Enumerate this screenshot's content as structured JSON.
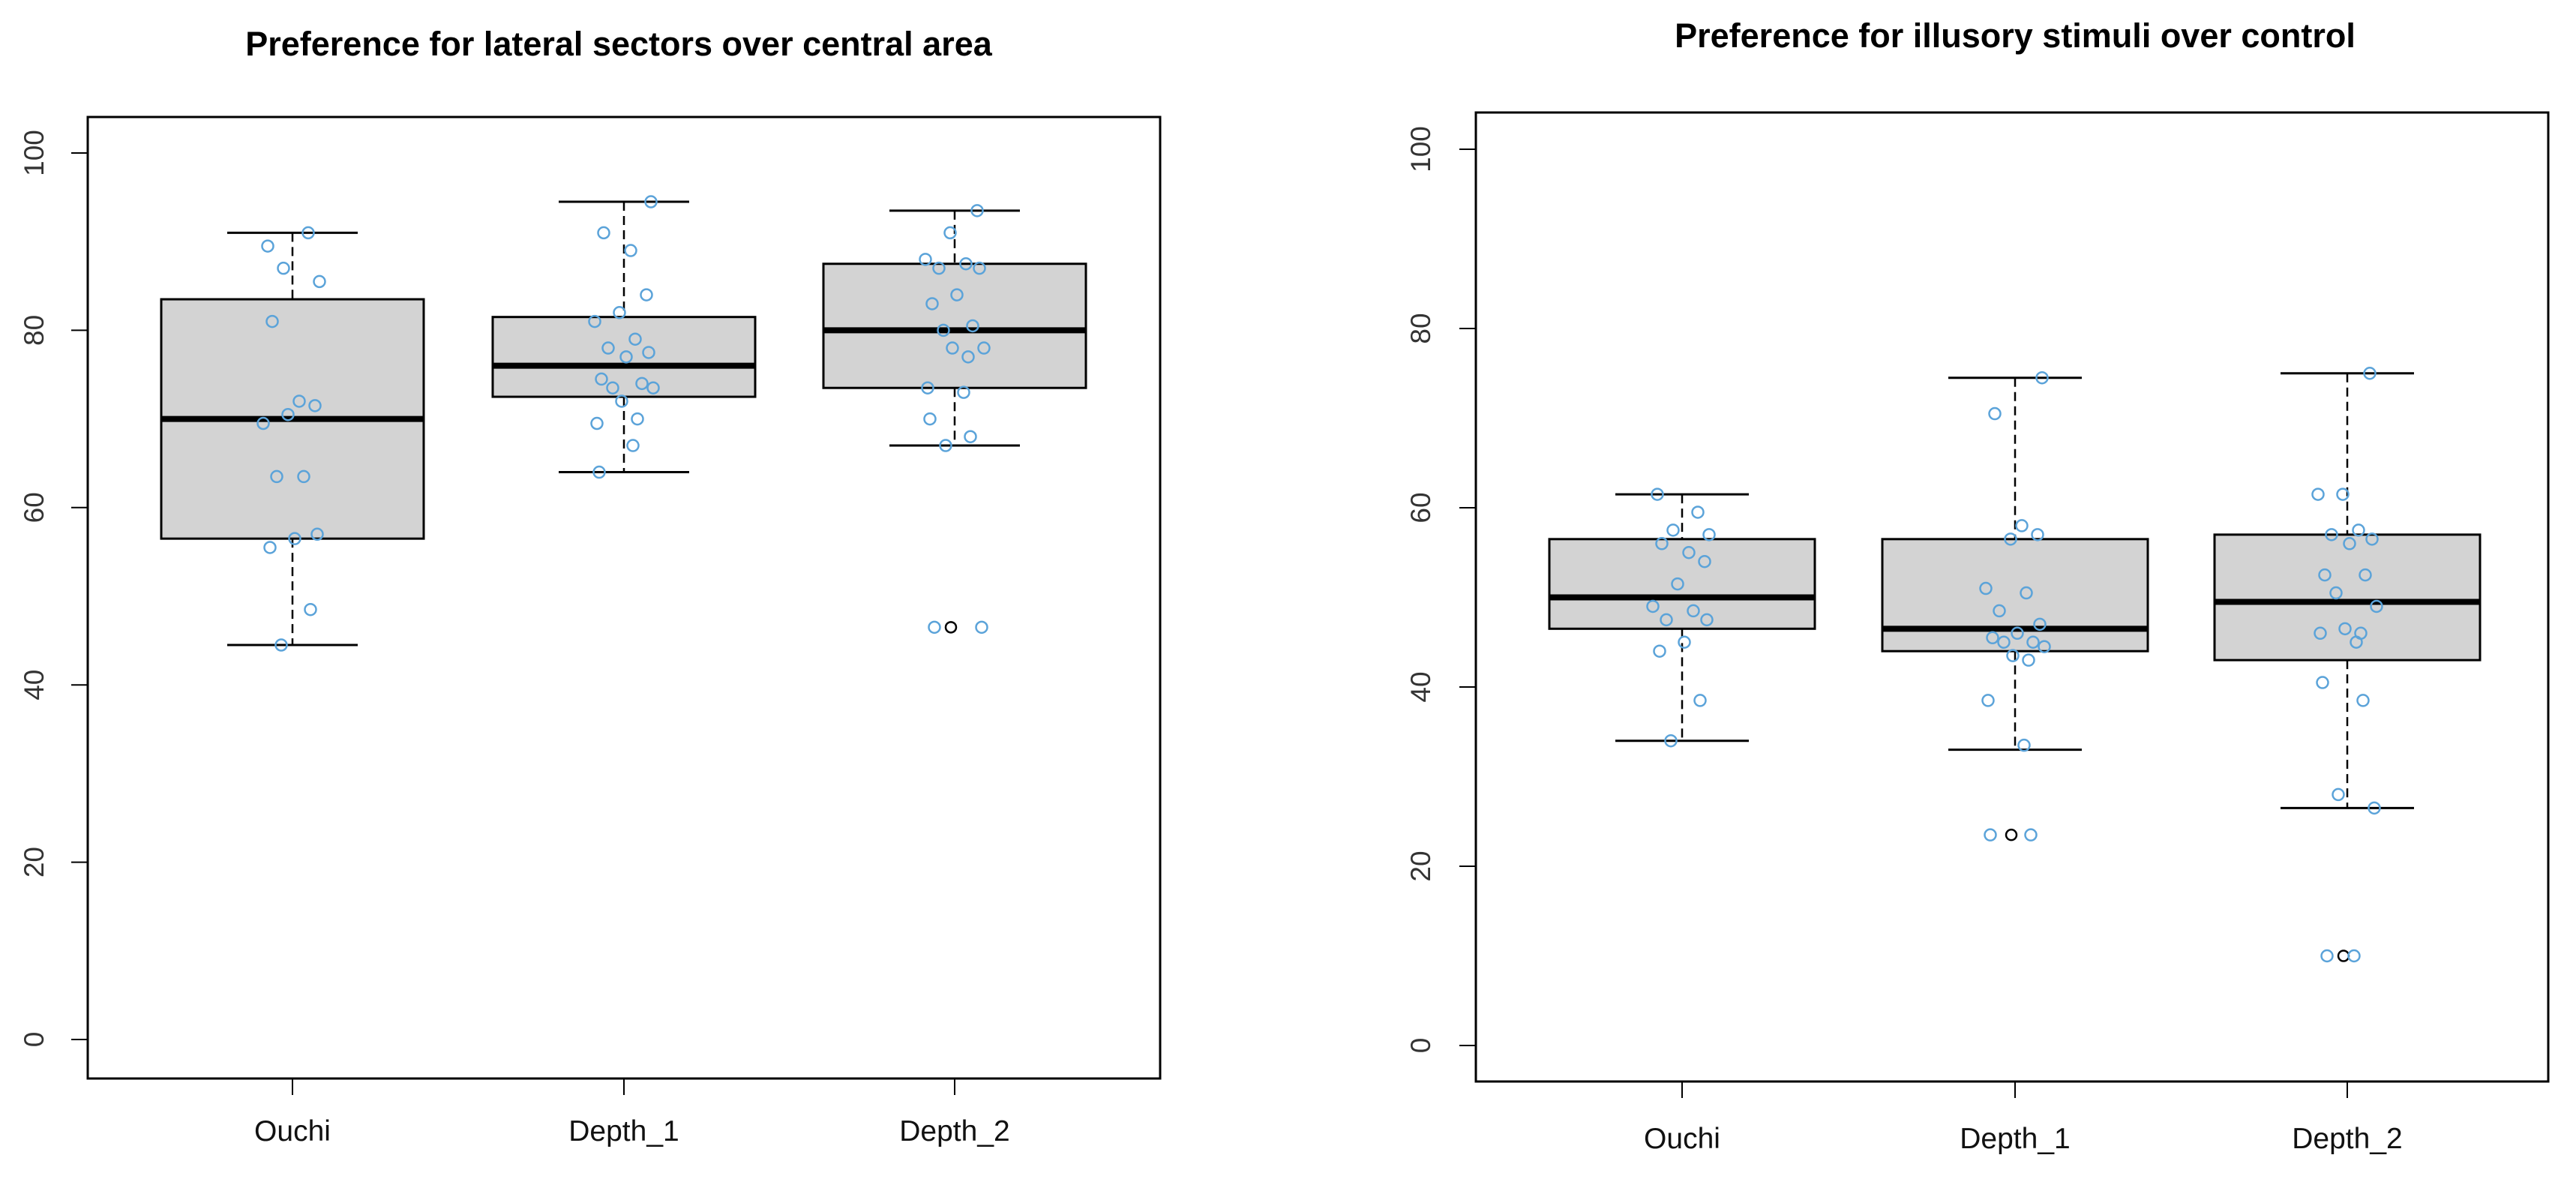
{
  "chart_data": [
    {
      "type": "boxplot",
      "title": "Preference for lateral sectors over central area",
      "xlabel": "",
      "ylabel": "",
      "ylim": [
        0,
        100
      ],
      "yticks": [
        "0",
        "20",
        "40",
        "60",
        "80",
        "100"
      ],
      "categories": [
        "Ouchi",
        "Depth_1",
        "Depth_2"
      ],
      "box_color": "#d3d3d3",
      "point_color": "#5ba3d9",
      "boxes": [
        {
          "name": "Ouchi",
          "min": 44.5,
          "q1": 56.5,
          "median": 70,
          "q3": 83.5,
          "max": 91,
          "outliers": []
        },
        {
          "name": "Depth_1",
          "min": 64,
          "q1": 72.5,
          "median": 76,
          "q3": 81.5,
          "max": 94.5,
          "outliers": []
        },
        {
          "name": "Depth_2",
          "min": 67,
          "q1": 73.5,
          "median": 80,
          "q3": 87.5,
          "max": 93.5,
          "outliers": [
            46.5
          ]
        }
      ],
      "points": [
        [
          89.5,
          91,
          87,
          85.5,
          81,
          72,
          71.5,
          70.5,
          69.5,
          63.5,
          63.5,
          57,
          56.5,
          55.5,
          48.5,
          44.5
        ],
        [
          94.5,
          91,
          89,
          84,
          82,
          81,
          79,
          78,
          77.5,
          77,
          74.5,
          74,
          73.5,
          73.5,
          72,
          70,
          69.5,
          67,
          64
        ],
        [
          93.5,
          91,
          88,
          87.5,
          87,
          87,
          84,
          83,
          80.5,
          80,
          78,
          78,
          77,
          73.5,
          73,
          70,
          68,
          67,
          46.5,
          46.5
        ]
      ]
    },
    {
      "type": "boxplot",
      "title": "Preference for illusory stimuli over control",
      "xlabel": "",
      "ylabel": "",
      "ylim": [
        0,
        100
      ],
      "yticks": [
        "0",
        "20",
        "40",
        "60",
        "80",
        "100"
      ],
      "categories": [
        "Ouchi",
        "Depth_1",
        "Depth_2"
      ],
      "box_color": "#d3d3d3",
      "point_color": "#5ba3d9",
      "boxes": [
        {
          "name": "Ouchi",
          "min": 34,
          "q1": 46.5,
          "median": 50,
          "q3": 56.5,
          "max": 61.5,
          "outliers": []
        },
        {
          "name": "Depth_1",
          "min": 33,
          "q1": 44,
          "median": 46.5,
          "q3": 56.5,
          "max": 74.5,
          "outliers": [
            23.5
          ]
        },
        {
          "name": "Depth_2",
          "min": 26.5,
          "q1": 43,
          "median": 49.5,
          "q3": 57,
          "max": 75,
          "outliers": [
            10
          ]
        }
      ],
      "points": [
        [
          61.5,
          59.5,
          57.5,
          57,
          56,
          55,
          54,
          51.5,
          49,
          48.5,
          47.5,
          47.5,
          45,
          44,
          38.5,
          34
        ],
        [
          74.5,
          70.5,
          58,
          57,
          56.5,
          51,
          50.5,
          48.5,
          47,
          46,
          45.5,
          45,
          45,
          44.5,
          43.5,
          43,
          38.5,
          33.5,
          23.5,
          23.5
        ],
        [
          75,
          61.5,
          61.5,
          57.5,
          57,
          56.5,
          56,
          52.5,
          52.5,
          50.5,
          49,
          46.5,
          46,
          46,
          45,
          40.5,
          38.5,
          28,
          26.5,
          10,
          10
        ]
      ]
    }
  ]
}
